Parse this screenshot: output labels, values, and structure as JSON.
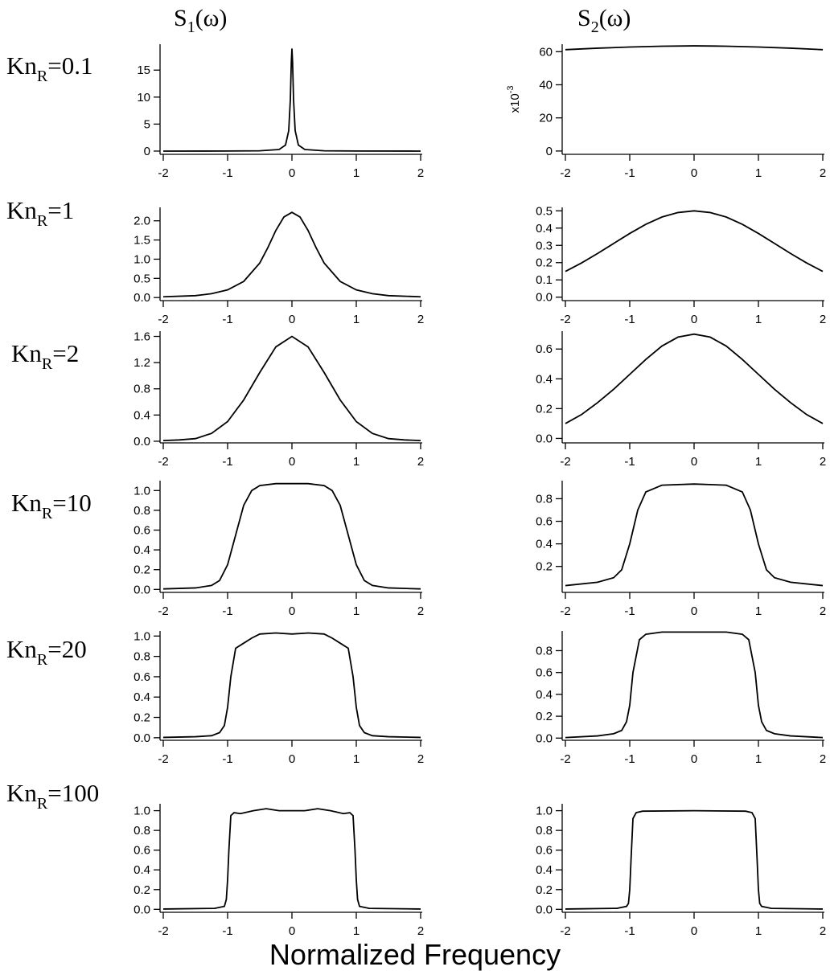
{
  "figure": {
    "column_titles": [
      {
        "base": "S",
        "sub": "1",
        "rest": "(ω)"
      },
      {
        "base": "S",
        "sub": "2",
        "rest": "(ω)"
      }
    ],
    "row_labels": [
      {
        "base": "Kn",
        "sub": "R",
        "rest": "=0.1"
      },
      {
        "base": "Kn",
        "sub": "R",
        "rest": "=1"
      },
      {
        "base": "Kn",
        "sub": "R",
        "rest": "=2"
      },
      {
        "base": "Kn",
        "sub": "R",
        "rest": "=10"
      },
      {
        "base": "Kn",
        "sub": "R",
        "rest": "=20"
      },
      {
        "base": "Kn",
        "sub": "R",
        "rest": "=100"
      }
    ],
    "xlabel": "Normalized Frequency"
  },
  "chart_data": [
    {
      "type": "line",
      "color": "#000000",
      "xlim": [
        -2,
        2
      ],
      "xticks": [
        -2,
        -1,
        0,
        1,
        2
      ],
      "ylim": [
        -0.6,
        19.8
      ],
      "yticks": [
        0,
        5,
        10,
        15
      ],
      "x": [
        -2,
        -1,
        -0.5,
        -0.2,
        -0.1,
        -0.05,
        -0.025,
        -0.01,
        0,
        0.01,
        0.025,
        0.05,
        0.1,
        0.2,
        0.5,
        1,
        2
      ],
      "values": [
        0,
        0.01,
        0.05,
        0.29,
        1.12,
        3.8,
        9.5,
        16.4,
        19,
        16.4,
        9.5,
        3.8,
        1.12,
        0.29,
        0.05,
        0.01,
        0
      ]
    },
    {
      "type": "line",
      "color": "#000000",
      "xlim": [
        -2,
        2
      ],
      "xticks": [
        -2,
        -1,
        0,
        1,
        2
      ],
      "ylim": [
        -2,
        64.5
      ],
      "yticks": [
        0,
        20,
        40,
        60
      ],
      "y_multiplier": {
        "base": "x10",
        "sup": "-3"
      },
      "x": [
        -2,
        -1.5,
        -1,
        -0.5,
        0,
        0.5,
        1,
        1.5,
        2
      ],
      "values": [
        61.2,
        62.1,
        62.8,
        63.3,
        63.5,
        63.3,
        62.8,
        62.1,
        61.2
      ]
    },
    {
      "type": "line",
      "color": "#000000",
      "xlim": [
        -2,
        2
      ],
      "xticks": [
        -2,
        -1,
        0,
        1,
        2
      ],
      "ylim": [
        -0.08,
        2.35
      ],
      "yticks": [
        {
          "value": 0,
          "label": "0.0"
        },
        0.5,
        {
          "value": 1,
          "label": "1.0"
        },
        1.5,
        {
          "value": 2,
          "label": "2.0"
        }
      ],
      "x": [
        -2,
        -1.5,
        -1.25,
        -1,
        -0.75,
        -0.5,
        -0.375,
        -0.25,
        -0.125,
        0,
        0.125,
        0.25,
        0.375,
        0.5,
        0.75,
        1,
        1.25,
        1.5,
        2
      ],
      "values": [
        0.02,
        0.05,
        0.1,
        0.2,
        0.42,
        0.9,
        1.3,
        1.75,
        2.1,
        2.22,
        2.1,
        1.75,
        1.3,
        0.9,
        0.42,
        0.2,
        0.1,
        0.05,
        0.02
      ]
    },
    {
      "type": "line",
      "color": "#000000",
      "xlim": [
        -2,
        2
      ],
      "xticks": [
        -2,
        -1,
        0,
        1,
        2
      ],
      "ylim": [
        -0.02,
        0.52
      ],
      "yticks": [
        {
          "value": 0,
          "label": "0.0"
        },
        0.1,
        0.2,
        0.3,
        0.4,
        0.5
      ],
      "x": [
        -2,
        -1.75,
        -1.5,
        -1.25,
        -1,
        -0.75,
        -0.5,
        -0.25,
        0,
        0.25,
        0.5,
        0.75,
        1,
        1.25,
        1.5,
        1.75,
        2
      ],
      "values": [
        0.149,
        0.198,
        0.253,
        0.311,
        0.369,
        0.422,
        0.464,
        0.49,
        0.5,
        0.49,
        0.464,
        0.422,
        0.369,
        0.311,
        0.253,
        0.198,
        0.149
      ]
    },
    {
      "type": "line",
      "color": "#000000",
      "xlim": [
        -2,
        2
      ],
      "xticks": [
        -2,
        -1,
        0,
        1,
        2
      ],
      "ylim": [
        -0.025,
        1.68
      ],
      "yticks": [
        {
          "value": 0,
          "label": "0.0"
        },
        0.4,
        0.8,
        1.2,
        1.6
      ],
      "x": [
        -2,
        -1.75,
        -1.5,
        -1.25,
        -1,
        -0.75,
        -0.5,
        -0.25,
        0,
        0.25,
        0.5,
        0.75,
        1,
        1.25,
        1.5,
        1.75,
        2
      ],
      "values": [
        0.01,
        0.02,
        0.04,
        0.12,
        0.3,
        0.63,
        1.05,
        1.44,
        1.6,
        1.44,
        1.05,
        0.63,
        0.3,
        0.12,
        0.04,
        0.02,
        0.01
      ]
    },
    {
      "type": "line",
      "color": "#000000",
      "xlim": [
        -2,
        2
      ],
      "xticks": [
        -2,
        -1,
        0,
        1,
        2
      ],
      "ylim": [
        -0.03,
        0.72
      ],
      "yticks": [
        {
          "value": 0,
          "label": "0.0"
        },
        0.2,
        0.4,
        0.6
      ],
      "x": [
        -2,
        -1.75,
        -1.5,
        -1.25,
        -1,
        -0.75,
        -0.5,
        -0.25,
        0,
        0.25,
        0.5,
        0.75,
        1,
        1.25,
        1.5,
        1.75,
        2
      ],
      "values": [
        0.1,
        0.16,
        0.24,
        0.33,
        0.43,
        0.53,
        0.62,
        0.68,
        0.7,
        0.68,
        0.62,
        0.53,
        0.43,
        0.33,
        0.24,
        0.16,
        0.1
      ]
    },
    {
      "type": "line",
      "color": "#000000",
      "xlim": [
        -2,
        2
      ],
      "xticks": [
        -2,
        -1,
        0,
        1,
        2
      ],
      "ylim": [
        -0.03,
        1.1
      ],
      "yticks": [
        {
          "value": 0,
          "label": "0.0"
        },
        0.2,
        0.4,
        0.6,
        0.8,
        {
          "value": 1,
          "label": "1.0"
        }
      ],
      "x": [
        -2,
        -1.5,
        -1.25,
        -1.125,
        -1,
        -0.875,
        -0.75,
        -0.625,
        -0.5,
        -0.25,
        0,
        0.25,
        0.5,
        0.625,
        0.75,
        0.875,
        1,
        1.125,
        1.25,
        1.5,
        2
      ],
      "values": [
        0.005,
        0.015,
        0.04,
        0.09,
        0.25,
        0.55,
        0.85,
        1.0,
        1.05,
        1.07,
        1.07,
        1.07,
        1.05,
        1.0,
        0.85,
        0.55,
        0.25,
        0.09,
        0.04,
        0.015,
        0.005
      ]
    },
    {
      "type": "line",
      "color": "#000000",
      "xlim": [
        -2,
        2
      ],
      "xticks": [
        -2,
        -1,
        0,
        1,
        2
      ],
      "ylim": [
        -0.03,
        0.96
      ],
      "yticks": [
        0.2,
        0.4,
        0.6,
        0.8
      ],
      "x": [
        -2,
        -1.5,
        -1.25,
        -1.125,
        -1,
        -0.875,
        -0.75,
        -0.5,
        0,
        0.5,
        0.75,
        0.875,
        1,
        1.125,
        1.25,
        1.5,
        2
      ],
      "values": [
        0.03,
        0.06,
        0.1,
        0.17,
        0.4,
        0.7,
        0.86,
        0.92,
        0.93,
        0.92,
        0.86,
        0.7,
        0.4,
        0.17,
        0.1,
        0.06,
        0.03
      ]
    },
    {
      "type": "line",
      "color": "#000000",
      "xlim": [
        -2,
        2
      ],
      "xticks": [
        -2,
        -1,
        0,
        1,
        2
      ],
      "ylim": [
        -0.025,
        1.05
      ],
      "yticks": [
        {
          "value": 0,
          "label": "0.0"
        },
        0.2,
        0.4,
        0.6,
        0.8,
        {
          "value": 1,
          "label": "1.0"
        }
      ],
      "x": [
        -2,
        -1.5,
        -1.25,
        -1.125,
        -1.05,
        -1,
        -0.95,
        -0.875,
        -0.75,
        -0.625,
        -0.5,
        -0.25,
        0,
        0.25,
        0.5,
        0.625,
        0.75,
        0.875,
        0.95,
        1,
        1.05,
        1.125,
        1.25,
        1.5,
        2
      ],
      "values": [
        0.003,
        0.01,
        0.02,
        0.05,
        0.12,
        0.3,
        0.6,
        0.88,
        0.93,
        0.98,
        1.02,
        1.03,
        1.02,
        1.03,
        1.02,
        0.98,
        0.93,
        0.88,
        0.6,
        0.3,
        0.12,
        0.05,
        0.02,
        0.01,
        0.003
      ]
    },
    {
      "type": "line",
      "color": "#000000",
      "xlim": [
        -2,
        2
      ],
      "xticks": [
        -2,
        -1,
        0,
        1,
        2
      ],
      "ylim": [
        -0.02,
        0.98
      ],
      "yticks": [
        {
          "value": 0,
          "label": "0.0"
        },
        0.2,
        0.4,
        0.6,
        0.8
      ],
      "x": [
        -2,
        -1.5,
        -1.25,
        -1.125,
        -1.05,
        -1,
        -0.95,
        -0.85,
        -0.75,
        -0.5,
        0,
        0.5,
        0.75,
        0.85,
        0.95,
        1,
        1.05,
        1.125,
        1.25,
        1.5,
        2
      ],
      "values": [
        0.005,
        0.02,
        0.04,
        0.07,
        0.15,
        0.3,
        0.6,
        0.9,
        0.95,
        0.97,
        0.97,
        0.97,
        0.95,
        0.9,
        0.6,
        0.3,
        0.15,
        0.07,
        0.04,
        0.02,
        0.005
      ]
    },
    {
      "type": "line",
      "color": "#000000",
      "xlim": [
        -2,
        2
      ],
      "xticks": [
        -2,
        -1,
        0,
        1,
        2
      ],
      "ylim": [
        -0.03,
        1.07
      ],
      "yticks": [
        {
          "value": 0,
          "label": "0.0"
        },
        0.2,
        0.4,
        0.6,
        0.8,
        {
          "value": 1,
          "label": "1.0"
        }
      ],
      "x": [
        -2,
        -1.2,
        -1.05,
        -1.02,
        -1,
        -0.98,
        -0.95,
        -0.9,
        -0.8,
        -0.6,
        -0.4,
        -0.2,
        0,
        0.2,
        0.4,
        0.6,
        0.8,
        0.9,
        0.95,
        0.98,
        1,
        1.02,
        1.05,
        1.2,
        2
      ],
      "values": [
        0.003,
        0.01,
        0.03,
        0.1,
        0.3,
        0.6,
        0.95,
        0.98,
        0.97,
        1.0,
        1.02,
        1.0,
        1.0,
        1.0,
        1.02,
        1.0,
        0.97,
        0.98,
        0.95,
        0.6,
        0.3,
        0.1,
        0.03,
        0.01,
        0.003
      ]
    },
    {
      "type": "line",
      "color": "#000000",
      "xlim": [
        -2,
        2
      ],
      "xticks": [
        -2,
        -1,
        0,
        1,
        2
      ],
      "ylim": [
        -0.03,
        1.07
      ],
      "yticks": [
        {
          "value": 0,
          "label": "0.0"
        },
        0.2,
        0.4,
        0.6,
        0.8,
        {
          "value": 1,
          "label": "1.0"
        }
      ],
      "x": [
        -2,
        -1.2,
        -1.05,
        -1.02,
        -1,
        -0.98,
        -0.95,
        -0.9,
        -0.8,
        0,
        0.8,
        0.9,
        0.95,
        0.98,
        1,
        1.02,
        1.05,
        1.2,
        2
      ],
      "values": [
        0.003,
        0.01,
        0.03,
        0.06,
        0.2,
        0.5,
        0.92,
        0.98,
        0.995,
        1.0,
        0.995,
        0.98,
        0.92,
        0.5,
        0.2,
        0.06,
        0.03,
        0.01,
        0.003
      ]
    }
  ]
}
